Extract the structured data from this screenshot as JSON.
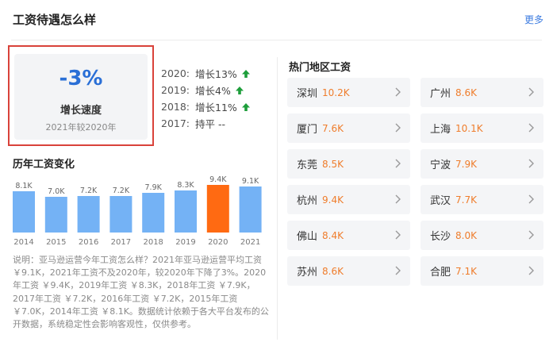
{
  "header": {
    "title": "工资待遇怎么样",
    "more_label": "更多"
  },
  "growth": {
    "value": "-3%",
    "label": "增长速度",
    "sub": "2021年较2020年"
  },
  "yoy": [
    {
      "year": "2020:",
      "text": "增长13%",
      "trend": "up"
    },
    {
      "year": "2019:",
      "text": "增长4%",
      "trend": "up"
    },
    {
      "year": "2018:",
      "text": "增长11%",
      "trend": "up"
    },
    {
      "year": "2017:",
      "text": "持平 --",
      "trend": "flat"
    }
  ],
  "chart_title": "历年工资变化",
  "chart_data": {
    "type": "bar",
    "categories": [
      "2014",
      "2015",
      "2016",
      "2017",
      "2018",
      "2019",
      "2020",
      "2021"
    ],
    "labels": [
      "8.1K",
      "7.0K",
      "7.2K",
      "7.2K",
      "7.9K",
      "8.3K",
      "9.4K",
      "9.1K"
    ],
    "values": [
      8.1,
      7.0,
      7.2,
      7.2,
      7.9,
      8.3,
      9.4,
      9.1
    ],
    "highlight": "2020",
    "colors": {
      "normal": "#74b2f5",
      "highlight": "#ff6a12"
    }
  },
  "description": "说明：亚马逊运营今年工资怎么样？2021年亚马逊运营平均工资 ￥9.1K，2021年工资不及2020年，较2020年下降了3%。2020年工资 ￥9.4K，2019年工资 ￥8.3K，2018年工资 ￥7.9K，2017年工资 ￥7.2K，2016年工资 ￥7.2K，2015年工资 ￥7.0K，2014年工资 ￥8.1K。数据统计依赖于各大平台发布的公开数据，系统稳定性会影响客观性，仅供参考。",
  "hot_regions": {
    "title": "热门地区工资",
    "cities": [
      {
        "name": "深圳",
        "salary": "10.2K"
      },
      {
        "name": "广州",
        "salary": "8.6K"
      },
      {
        "name": "厦门",
        "salary": "7.6K"
      },
      {
        "name": "上海",
        "salary": "10.1K"
      },
      {
        "name": "东莞",
        "salary": "8.5K"
      },
      {
        "name": "宁波",
        "salary": "7.9K"
      },
      {
        "name": "杭州",
        "salary": "9.4K"
      },
      {
        "name": "武汉",
        "salary": "7.7K"
      },
      {
        "name": "佛山",
        "salary": "8.4K"
      },
      {
        "name": "长沙",
        "salary": "8.0K"
      },
      {
        "name": "苏州",
        "salary": "8.6K"
      },
      {
        "name": "合肥",
        "salary": "7.1K"
      }
    ]
  },
  "theme": {
    "accent": "#2a6fd6",
    "up_arrow": "#1e9e3b",
    "salary": "#ef7d2c",
    "outline": "#d9423a"
  }
}
